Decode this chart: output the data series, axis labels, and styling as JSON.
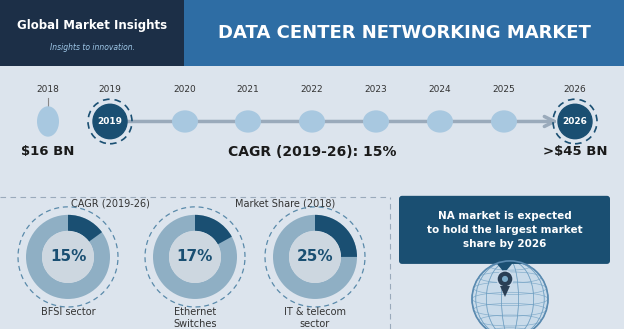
{
  "title": "DATA CENTER NETWORKING MARKET",
  "logo_text": "Global Market Insights",
  "logo_subtext": "Insights to innovation.",
  "bg_top_left": "#1c2f47",
  "bg_top_right": "#2e6da4",
  "bg_main": "#dce4ed",
  "timeline_years": [
    "2018",
    "2019",
    "2020",
    "2021",
    "2022",
    "2023",
    "2024",
    "2025",
    "2026"
  ],
  "value_start": "$16 BN",
  "value_end": ">$45 BN",
  "cagr_text": "CAGR (2019-26): 15%",
  "donut_label1": "CAGR (2019-26)",
  "donut_label2": "Market Share (2018)",
  "donuts": [
    {
      "value": 15,
      "label": "15%",
      "sublabel": "BFSI sector"
    },
    {
      "value": 17,
      "label": "17%",
      "sublabel": "Ethernet\nSwitches"
    },
    {
      "value": 25,
      "label": "25%",
      "sublabel": "IT & telecom\nsector"
    }
  ],
  "donut_color_fill": "#1a4f72",
  "donut_color_empty": "#8fafc4",
  "donut_inner_bg": "#cdd7e0",
  "donut_dash_color": "#5a8aaa",
  "na_box_text": "NA market is expected\nto hold the largest market\nshare by 2026",
  "na_box_bg": "#1a4f72",
  "na_box_text_color": "#ffffff",
  "circle_2018_color": "#a8c8e0",
  "circle_mid_color": "#a8c8e0",
  "circle_highlight_color": "#1a4f72",
  "arrow_color": "#9aaabb",
  "tl_bg": "#dce4ed",
  "pin_color": "#2a3f55"
}
